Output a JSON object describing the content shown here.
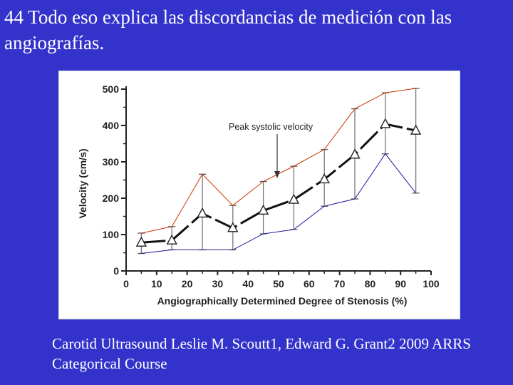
{
  "slide": {
    "title": "44 Todo eso explica las discordancias de medición con las angiografías.",
    "caption": "Carotid Ultrasound Leslie M. Scoutt1, Edward G. Grant2 2009 ARRS Categorical Course"
  },
  "colors": {
    "background": "#3333cc",
    "mean_line": "#111111",
    "upper_line": "#cc3300",
    "lower_line": "#1a1a99"
  },
  "chart_data": {
    "type": "line",
    "title": "",
    "xlabel": "Angiographically Determined Degree of Stenosis (%)",
    "ylabel": "Velocity (cm/s)",
    "xlim": [
      0,
      100
    ],
    "ylim": [
      0,
      500
    ],
    "xticks": [
      0,
      10,
      20,
      30,
      40,
      50,
      60,
      70,
      80,
      90,
      100
    ],
    "yticks": [
      0,
      100,
      200,
      300,
      400,
      500
    ],
    "annotation": "Peak systolic velocity",
    "grid": false,
    "x": [
      5,
      15,
      25,
      35,
      45,
      55,
      65,
      75,
      85,
      95
    ],
    "series": [
      {
        "values": [
          78,
          84,
          158,
          118,
          166,
          196,
          252,
          320,
          404,
          386
        ],
        "marker": "triangle",
        "style": "dashed-bold",
        "color": "#111111"
      },
      {
        "values": [
          104,
          122,
          266,
          180,
          246,
          288,
          334,
          446,
          490,
          502
        ],
        "style": "solid-thin",
        "color": "#cc3300"
      },
      {
        "values": [
          48,
          58,
          58,
          58,
          102,
          114,
          178,
          198,
          322,
          214
        ],
        "style": "solid-thin",
        "color": "#1a1a99"
      }
    ],
    "error_bars": {
      "upper": [
        104,
        122,
        266,
        180,
        246,
        288,
        334,
        446,
        490,
        502
      ],
      "lower": [
        48,
        58,
        58,
        58,
        102,
        114,
        178,
        198,
        322,
        214
      ]
    }
  }
}
